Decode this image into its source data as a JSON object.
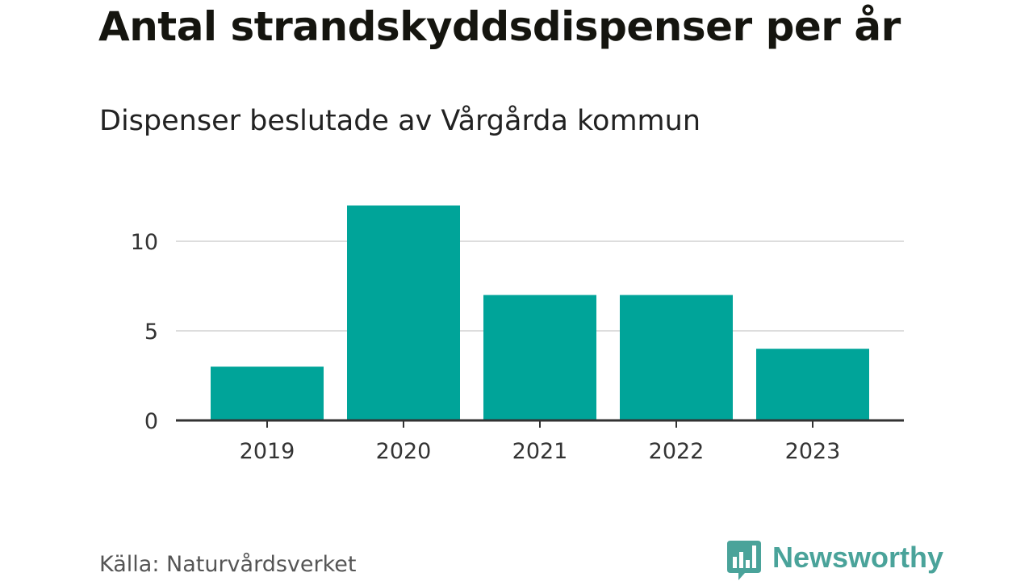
{
  "title": "Antal strandskyddsdispenser per år",
  "subtitle": "Dispenser beslutade av Vårgårda kommun",
  "source": "Källa: Naturvårdsverket",
  "logo": {
    "name": "Newsworthy",
    "icon": "newsworthy-bar-chart-icon",
    "color": "#4aa39a"
  },
  "chart_data": {
    "type": "bar",
    "categories": [
      "2019",
      "2020",
      "2021",
      "2022",
      "2023"
    ],
    "values": [
      3,
      12,
      7,
      7,
      4
    ],
    "ylim": [
      0,
      12
    ],
    "yticks": [
      0,
      5,
      10
    ],
    "grid": true,
    "bar_color": "#00a499",
    "grid_color": "#dddddd",
    "axis_color": "#333333"
  }
}
